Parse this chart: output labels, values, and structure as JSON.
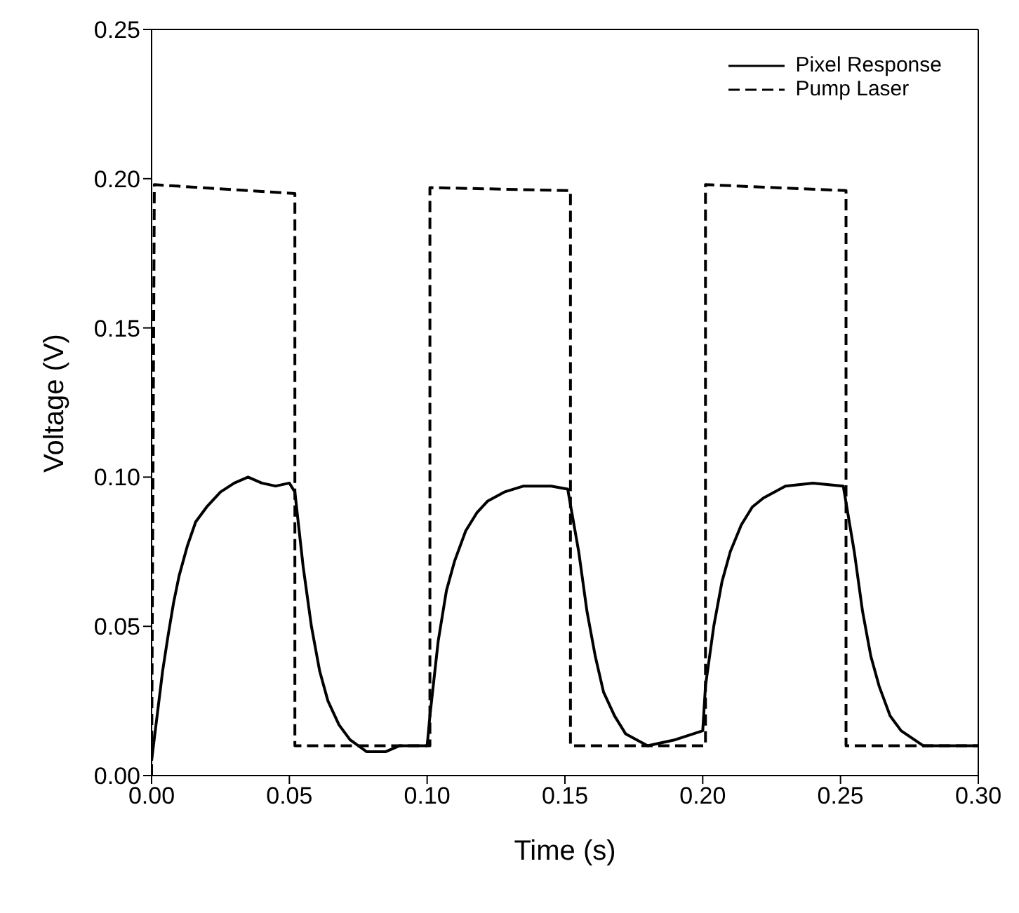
{
  "chart_data": {
    "type": "line",
    "xlabel": "Time (s)",
    "ylabel": "Voltage (V)",
    "xlim": [
      0,
      0.3
    ],
    "ylim": [
      0,
      0.25
    ],
    "xticks": [
      {
        "value": 0,
        "label": "0.00"
      },
      {
        "value": 0.05,
        "label": "0.05"
      },
      {
        "value": 0.1,
        "label": "0.10"
      },
      {
        "value": 0.15,
        "label": "0.15"
      },
      {
        "value": 0.2,
        "label": "0.20"
      },
      {
        "value": 0.25,
        "label": "0.25"
      },
      {
        "value": 0.3,
        "label": "0.30"
      }
    ],
    "yticks": [
      {
        "value": 0,
        "label": "0.00"
      },
      {
        "value": 0.05,
        "label": "0.05"
      },
      {
        "value": 0.1,
        "label": "0.10"
      },
      {
        "value": 0.15,
        "label": "0.15"
      },
      {
        "value": 0.2,
        "label": "0.20"
      },
      {
        "value": 0.25,
        "label": "0.25"
      }
    ],
    "grid": false,
    "legend": "top right",
    "marker": "none",
    "series": [
      {
        "name": "Pixel Response",
        "color": "#000000",
        "line_style": "solid",
        "x": [
          0,
          0.002,
          0.004,
          0.006,
          0.008,
          0.01,
          0.013,
          0.016,
          0.02,
          0.025,
          0.03,
          0.035,
          0.04,
          0.045,
          0.05,
          0.052,
          0.055,
          0.058,
          0.061,
          0.064,
          0.068,
          0.072,
          0.078,
          0.085,
          0.09,
          0.095,
          0.1,
          0.101,
          0.104,
          0.107,
          0.11,
          0.114,
          0.118,
          0.122,
          0.128,
          0.135,
          0.145,
          0.151,
          0.155,
          0.158,
          0.161,
          0.164,
          0.168,
          0.172,
          0.18,
          0.19,
          0.2,
          0.201,
          0.204,
          0.207,
          0.21,
          0.214,
          0.218,
          0.222,
          0.23,
          0.24,
          0.251,
          0.255,
          0.258,
          0.261,
          0.264,
          0.268,
          0.272,
          0.28,
          0.29,
          0.3
        ],
        "values": [
          0.005,
          0.02,
          0.035,
          0.047,
          0.058,
          0.067,
          0.077,
          0.085,
          0.09,
          0.095,
          0.098,
          0.1,
          0.098,
          0.097,
          0.098,
          0.095,
          0.07,
          0.05,
          0.035,
          0.025,
          0.017,
          0.012,
          0.008,
          0.008,
          0.01,
          0.01,
          0.01,
          0.02,
          0.045,
          0.062,
          0.072,
          0.082,
          0.088,
          0.092,
          0.095,
          0.097,
          0.097,
          0.096,
          0.075,
          0.055,
          0.04,
          0.028,
          0.02,
          0.014,
          0.01,
          0.012,
          0.015,
          0.03,
          0.05,
          0.065,
          0.075,
          0.084,
          0.09,
          0.093,
          0.097,
          0.098,
          0.097,
          0.075,
          0.055,
          0.04,
          0.03,
          0.02,
          0.015,
          0.01,
          0.01,
          0.01
        ]
      },
      {
        "name": "Pump Laser",
        "color": "#000000",
        "line_style": "dashed",
        "x": [
          0,
          0.001,
          0.052,
          0.052,
          0.101,
          0.101,
          0.152,
          0.152,
          0.201,
          0.201,
          0.252,
          0.252,
          0.3
        ],
        "values": [
          0,
          0.198,
          0.195,
          0.01,
          0.01,
          0.197,
          0.196,
          0.01,
          0.01,
          0.198,
          0.196,
          0.01,
          0.01
        ]
      }
    ]
  }
}
